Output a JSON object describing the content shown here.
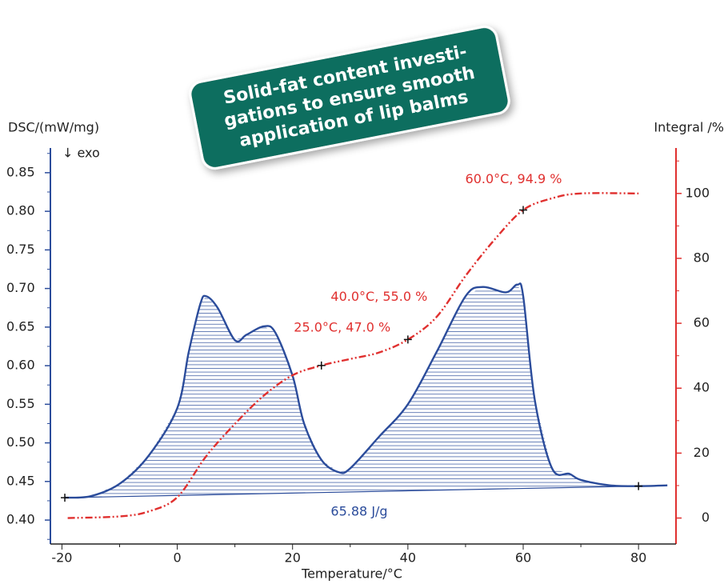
{
  "chart_data": {
    "type": "dsc",
    "banner": [
      "Solid-fat content investi-",
      "gations to ensure smooth",
      "application of lip balms"
    ],
    "ylabel": "DSC/(mW/mg)",
    "ylabel_note": "↓ exo",
    "y2label": "Integral /%",
    "xlabel": "Temperature/°C",
    "xlim": [
      -22,
      86.5
    ],
    "xticks": [
      -20,
      0,
      20,
      40,
      60,
      80
    ],
    "xticks_minor": [
      -10,
      10,
      30,
      50,
      70
    ],
    "ylim": [
      0.369,
      0.882
    ],
    "yticks": [
      {
        "value": 0.4,
        "label": "0.40"
      },
      {
        "value": 0.45,
        "label": "0.45"
      },
      {
        "value": 0.5,
        "label": "0.50"
      },
      {
        "value": 0.55,
        "label": "0.55"
      },
      {
        "value": 0.6,
        "label": "0.60"
      },
      {
        "value": 0.65,
        "label": "0.65"
      },
      {
        "value": 0.7,
        "label": "0.70"
      },
      {
        "value": 0.75,
        "label": "0.75"
      },
      {
        "value": 0.8,
        "label": "0.80"
      },
      {
        "value": 0.85,
        "label": "0.85"
      }
    ],
    "yticks_minor": [
      0.375,
      0.425,
      0.475,
      0.525,
      0.575,
      0.625,
      0.675,
      0.725,
      0.775,
      0.825,
      0.875
    ],
    "y2lim": [
      -8,
      114
    ],
    "y2ticks": [
      0,
      20,
      40,
      60,
      80,
      100
    ],
    "y2ticks_minor": [
      10,
      30,
      50,
      70,
      90,
      110
    ],
    "series": [
      {
        "color": "#2b4c9b",
        "x": [
          -19.5,
          -15,
          -10,
          -5,
          0,
          2,
          4,
          5,
          7,
          10,
          12,
          15,
          17,
          20,
          22,
          25,
          28,
          30,
          35,
          40,
          45,
          50,
          53,
          57,
          59,
          60,
          62,
          65,
          68,
          70,
          75,
          80,
          85
        ],
        "values": [
          0.429,
          0.431,
          0.447,
          0.483,
          0.545,
          0.618,
          0.68,
          0.69,
          0.675,
          0.633,
          0.64,
          0.651,
          0.643,
          0.587,
          0.525,
          0.478,
          0.462,
          0.467,
          0.508,
          0.55,
          0.618,
          0.69,
          0.702,
          0.695,
          0.705,
          0.69,
          0.556,
          0.467,
          0.46,
          0.452,
          0.445,
          0.444,
          0.445
        ]
      },
      {
        "color": "#e0302f",
        "axis": "y2",
        "x": [
          -19,
          -10,
          -5,
          0,
          5,
          10,
          15,
          20,
          25,
          30,
          35,
          40,
          45,
          50,
          55,
          60,
          65,
          70,
          80
        ],
        "values": [
          0,
          0.5,
          2,
          6.4,
          19,
          29,
          37.7,
          44,
          47,
          49,
          51,
          55,
          62,
          74.6,
          85.7,
          94.9,
          98.5,
          100,
          100
        ]
      }
    ],
    "baseline": {
      "x": [
        -19.5,
        80
      ],
      "values": [
        0.429,
        0.444
      ]
    },
    "area_label": "65.88 J/g",
    "markers": [
      {
        "x": -19.5,
        "y": 0.429
      },
      {
        "x": 80,
        "y": 0.444
      }
    ],
    "annotations": [
      {
        "text": "60.0°C, 94.9 %",
        "x": 60,
        "y": 94.9
      },
      {
        "text": "40.0°C, 55.0 %",
        "x": 40,
        "y": 55
      },
      {
        "text": "25.0°C, 47.0 %",
        "x": 25,
        "y": 47
      }
    ]
  }
}
